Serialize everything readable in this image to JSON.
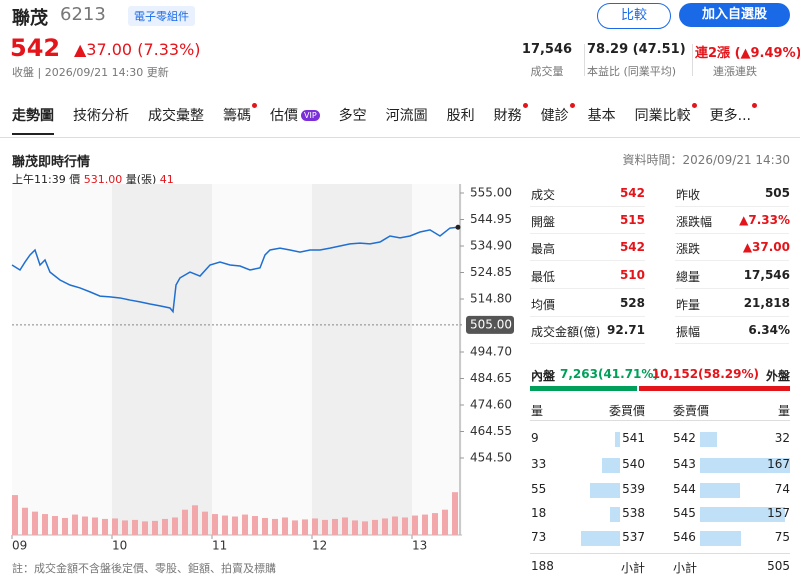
{
  "header": {
    "name": "聯茂",
    "code": "6213",
    "sector": "電子零組件",
    "buttons": [
      "比較",
      "加入自選股"
    ],
    "price": "542",
    "change": "▲37.00 (7.33%)",
    "status": "收盤 | 2026/09/21 14:30 更新",
    "stats": [
      {
        "value": "17,546",
        "label": "成交量"
      },
      {
        "value": "78.29 (47.51)",
        "label": "本益比 (同業平均)"
      },
      {
        "value": "連2漲 (▲9.49%)",
        "label": "連漲連跌"
      }
    ]
  },
  "tabs": {
    "active": 0,
    "items": [
      {
        "label": "走勢圖"
      },
      {
        "label": "技術分析"
      },
      {
        "label": "成交彙整"
      },
      {
        "label": "籌碼",
        "dot": true
      },
      {
        "label": "估價",
        "badge": "VIP"
      },
      {
        "label": "多空"
      },
      {
        "label": "河流圖"
      },
      {
        "label": "股利"
      },
      {
        "label": "財務",
        "dot": true
      },
      {
        "label": "健診",
        "dot": true
      },
      {
        "label": "基本"
      },
      {
        "label": "同業比較",
        "dot": true
      },
      {
        "label": "更多...",
        "dot": true
      }
    ]
  },
  "chart_data": {
    "type": "line",
    "title": "聯茂即時行情",
    "updated": "資料時間：2026/09/21 14:30",
    "tooltip": {
      "time": "上午11:39",
      "price_label": "價",
      "price": "531.00",
      "volume_label": "量(張)",
      "volume": "41"
    },
    "x": [
      9.0,
      9.08,
      9.13,
      9.18,
      9.23,
      9.28,
      9.33,
      9.38,
      9.48,
      9.58,
      9.68,
      9.78,
      9.88,
      9.98,
      10.08,
      10.18,
      10.28,
      10.38,
      10.48,
      10.58,
      10.61,
      10.64,
      10.68,
      10.78,
      10.88,
      10.98,
      11.08,
      11.18,
      11.28,
      11.38,
      11.48,
      11.53,
      11.58,
      11.68,
      11.78,
      11.88,
      11.98,
      12.08,
      12.18,
      12.28,
      12.38,
      12.48,
      12.58,
      12.68,
      12.78,
      12.88,
      12.98,
      13.08,
      13.18,
      13.28,
      13.38,
      13.46
    ],
    "values": [
      527.7,
      525.8,
      528.8,
      531.5,
      533.4,
      527.7,
      529.6,
      525.0,
      522.0,
      520.1,
      519.0,
      517.5,
      515.9,
      515.6,
      515.2,
      514.4,
      513.7,
      512.9,
      512.2,
      511.4,
      510.0,
      520.1,
      522.8,
      525.0,
      523.5,
      527.7,
      528.8,
      527.7,
      527.3,
      525.8,
      526.6,
      531.5,
      533.4,
      534.1,
      533.4,
      532.6,
      533.4,
      533.4,
      534.1,
      534.9,
      535.7,
      536.0,
      535.7,
      536.4,
      538.7,
      538.0,
      538.7,
      540.2,
      541.0,
      538.7,
      541.7,
      542
    ],
    "color": "#1f6fd1",
    "xlim": [
      9,
      13.5
    ],
    "xticks": [
      {
        "value": 9,
        "label": "09"
      },
      {
        "value": 10,
        "label": "10"
      },
      {
        "value": 11,
        "label": "11"
      },
      {
        "value": 12,
        "label": "12"
      },
      {
        "value": 13,
        "label": "13"
      }
    ],
    "ylim": [
      454.5,
      555
    ],
    "yticks": [
      {
        "value": 555,
        "label": "555.00"
      },
      {
        "value": 544.95,
        "label": "544.95"
      },
      {
        "value": 534.9,
        "label": "534.90"
      },
      {
        "value": 524.85,
        "label": "524.85"
      },
      {
        "value": 514.8,
        "label": "514.80"
      },
      {
        "value": 494.7,
        "label": "494.70"
      },
      {
        "value": 484.65,
        "label": "484.65"
      },
      {
        "value": 474.6,
        "label": "474.60"
      },
      {
        "value": 464.55,
        "label": "464.55"
      },
      {
        "value": 454.5,
        "label": "454.50"
      }
    ],
    "reference": {
      "value": 505,
      "label": "505.00"
    },
    "volume": {
      "color": "#f2a7aa",
      "ylim": [
        0,
        1500
      ],
      "x": [
        9.0,
        9.1,
        9.2,
        9.3,
        9.4,
        9.5,
        9.6,
        9.7,
        9.8,
        9.9,
        10.0,
        10.1,
        10.2,
        10.3,
        10.4,
        10.5,
        10.6,
        10.7,
        10.8,
        10.9,
        11.0,
        11.1,
        11.2,
        11.3,
        11.4,
        11.5,
        11.6,
        11.7,
        11.8,
        11.9,
        12.0,
        12.1,
        12.2,
        12.3,
        12.4,
        12.5,
        12.6,
        12.7,
        12.8,
        12.9,
        13.0,
        13.1,
        13.2,
        13.3,
        13.4
      ],
      "values": [
        820,
        560,
        480,
        430,
        390,
        350,
        420,
        380,
        360,
        330,
        340,
        300,
        310,
        280,
        290,
        330,
        360,
        520,
        610,
        480,
        430,
        400,
        380,
        420,
        390,
        350,
        330,
        360,
        300,
        320,
        340,
        310,
        330,
        360,
        300,
        280,
        310,
        340,
        380,
        360,
        400,
        420,
        450,
        520,
        880
      ]
    }
  },
  "quote": {
    "left": [
      {
        "label": "成交",
        "value": "542",
        "red": true
      },
      {
        "label": "開盤",
        "value": "515",
        "red": true
      },
      {
        "label": "最高",
        "value": "542",
        "red": true
      },
      {
        "label": "最低",
        "value": "510",
        "red": true
      },
      {
        "label": "均價",
        "value": "528"
      },
      {
        "label": "成交金額(億)",
        "value": "92.71"
      }
    ],
    "right": [
      {
        "label": "昨收",
        "value": "505"
      },
      {
        "label": "漲跌幅",
        "value": "▲7.33%",
        "red": true
      },
      {
        "label": "漲跌",
        "value": "▲37.00",
        "red": true
      },
      {
        "label": "總量",
        "value": "17,546"
      },
      {
        "label": "昨量",
        "value": "21,818"
      },
      {
        "label": "振幅",
        "value": "6.34%"
      }
    ]
  },
  "flow": {
    "inner": {
      "label": "內盤",
      "text": "7,263(41.71%)",
      "pct": 41.71
    },
    "outer": {
      "label": "外盤",
      "text": "10,152(58.29%)",
      "pct": 58.29
    }
  },
  "book": {
    "headers": [
      "量",
      "委買價",
      "委賣價",
      "量"
    ],
    "bids": [
      {
        "volume": 9,
        "price": 541
      },
      {
        "volume": 33,
        "price": 540
      },
      {
        "volume": 55,
        "price": 539
      },
      {
        "volume": 18,
        "price": 538
      },
      {
        "volume": 73,
        "price": 537
      }
    ],
    "asks": [
      {
        "price": 542,
        "volume": 32
      },
      {
        "price": 543,
        "volume": 167
      },
      {
        "price": 544,
        "volume": 74
      },
      {
        "price": 545,
        "volume": 157
      },
      {
        "price": 546,
        "volume": 75
      }
    ],
    "totals": [
      {
        "value": 188,
        "label": "小計"
      },
      {
        "label": "小計",
        "value": 505
      }
    ]
  },
  "footnote": "註：成交金額不含盤後定價、零股、鉅額、拍賣及標購"
}
